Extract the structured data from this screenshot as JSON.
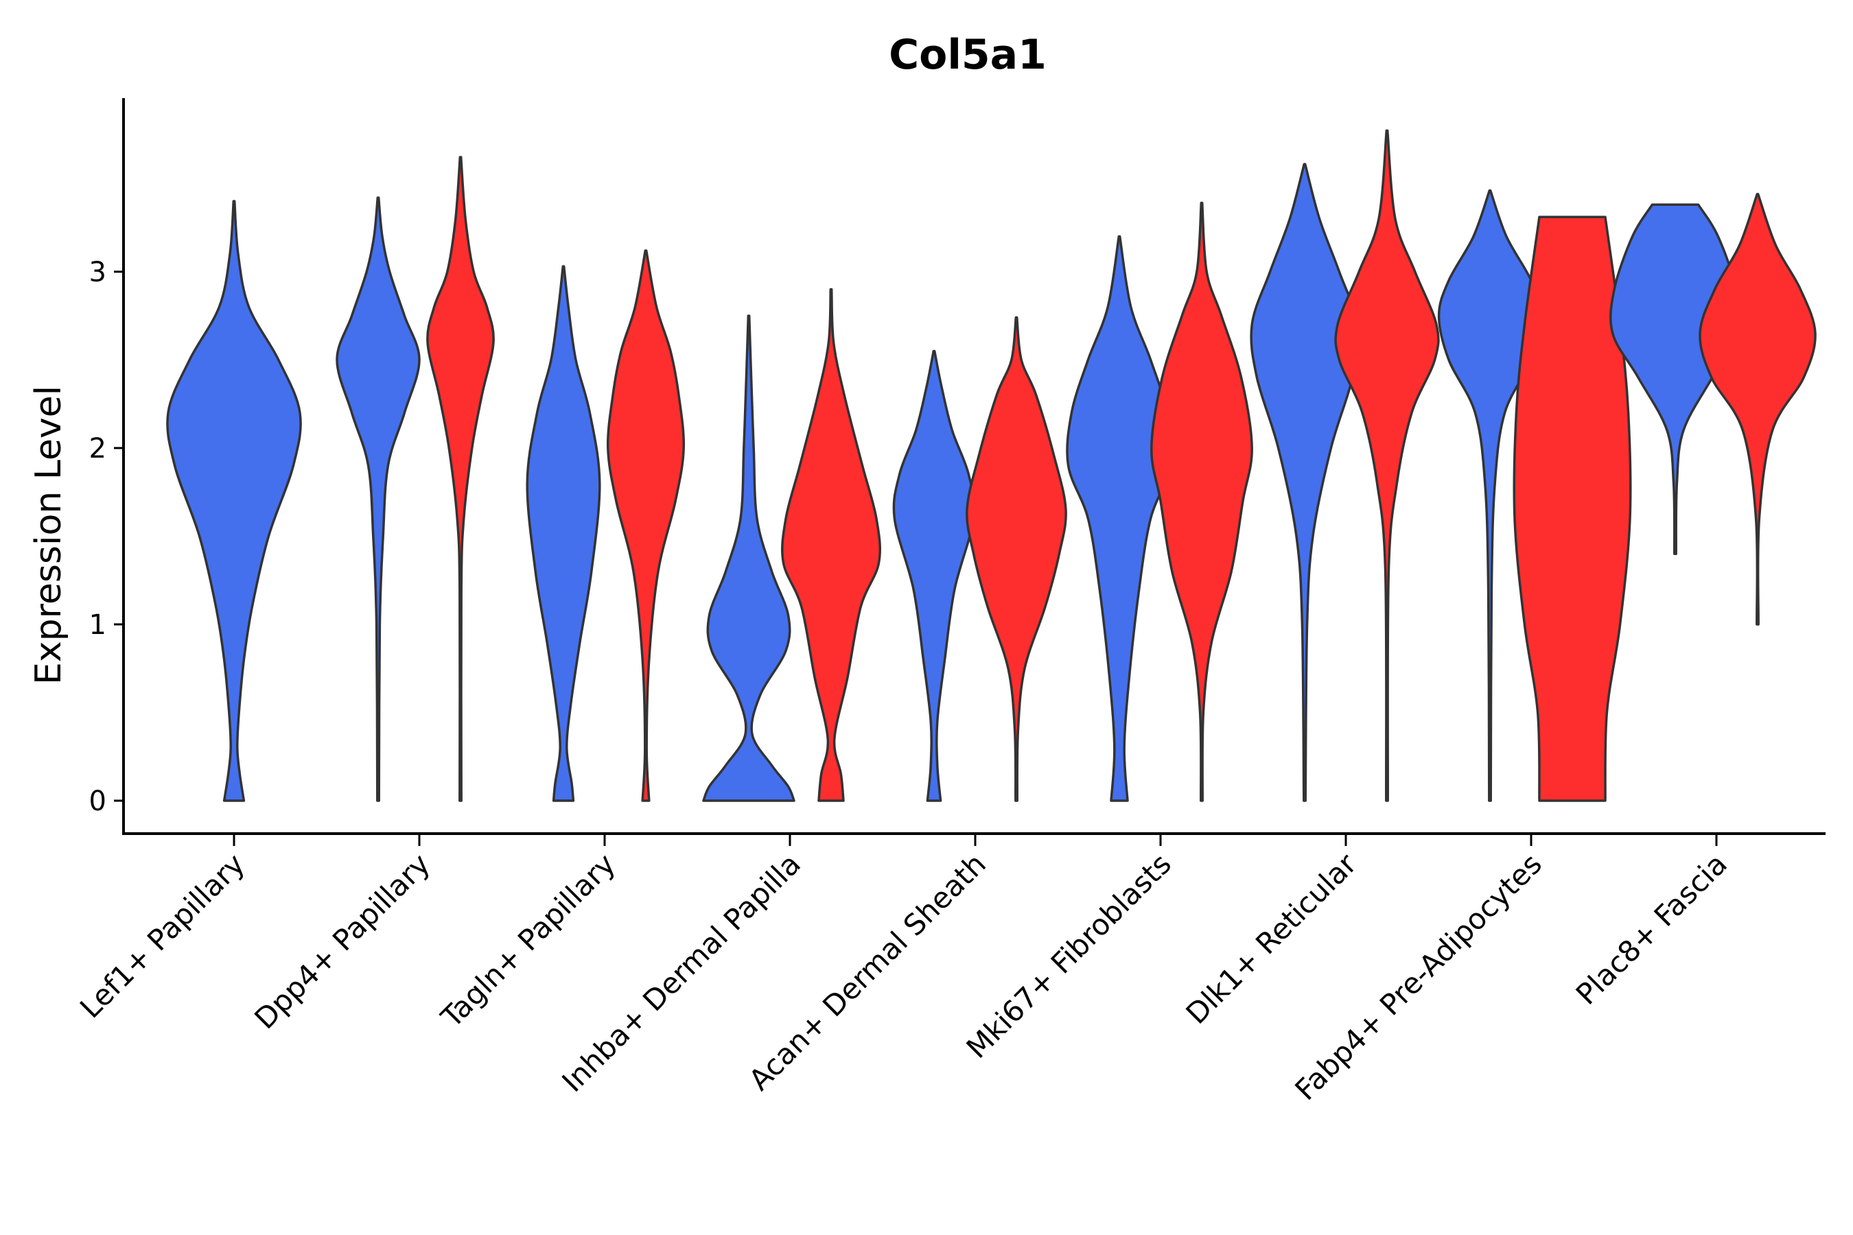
{
  "chart_data": {
    "type": "violin",
    "title": "Col5a1",
    "xlabel": "",
    "ylabel": "Expression Level",
    "ylim": [
      -0.2,
      4.0
    ],
    "yticks": [
      0,
      1,
      2,
      3
    ],
    "colors": {
      "group_a": "#4470ED",
      "group_b": "#FF2E2E",
      "outline": "#333333"
    },
    "categories": [
      "Lef1+ Papillary",
      "Dpp4+ Papillary",
      "Tagln+ Papillary",
      "Inhba+ Dermal Papilla",
      "Acan+ Dermal Sheath",
      "Mki67+ Fibroblasts",
      "Dlk1+ Reticular",
      "Fabp4+ Pre-Adipocytes",
      "Plac8+ Fascia"
    ],
    "violins": [
      {
        "category": "Lef1+ Papillary",
        "group": "a",
        "min": 0,
        "max": 3.4,
        "profile": [
          [
            0,
            0.12
          ],
          [
            0.15,
            0.07
          ],
          [
            0.3,
            0.04
          ],
          [
            0.5,
            0.06
          ],
          [
            0.8,
            0.12
          ],
          [
            1.1,
            0.22
          ],
          [
            1.5,
            0.42
          ],
          [
            1.9,
            0.72
          ],
          [
            2.2,
            0.8
          ],
          [
            2.5,
            0.54
          ],
          [
            2.8,
            0.18
          ],
          [
            3.1,
            0.05
          ],
          [
            3.4,
            0
          ]
        ]
      },
      {
        "category": "Dpp4+ Papillary",
        "group": "a",
        "min": 0,
        "max": 3.42,
        "profile": [
          [
            0,
            0.01
          ],
          [
            1.0,
            0.02
          ],
          [
            1.5,
            0.06
          ],
          [
            1.9,
            0.12
          ],
          [
            2.2,
            0.32
          ],
          [
            2.5,
            0.5
          ],
          [
            2.75,
            0.32
          ],
          [
            3.0,
            0.14
          ],
          [
            3.2,
            0.05
          ],
          [
            3.42,
            0
          ]
        ]
      },
      {
        "category": "Dpp4+ Papillary",
        "group": "b",
        "min": 0,
        "max": 3.65,
        "profile": [
          [
            0,
            0.01
          ],
          [
            1.2,
            0.01
          ],
          [
            1.6,
            0.04
          ],
          [
            2.0,
            0.14
          ],
          [
            2.3,
            0.26
          ],
          [
            2.6,
            0.4
          ],
          [
            2.8,
            0.32
          ],
          [
            3.0,
            0.16
          ],
          [
            3.3,
            0.06
          ],
          [
            3.65,
            0
          ]
        ]
      },
      {
        "category": "Tagln+ Papillary",
        "group": "a",
        "min": 0,
        "max": 3.03,
        "profile": [
          [
            0,
            0.12
          ],
          [
            0.1,
            0.1
          ],
          [
            0.3,
            0.04
          ],
          [
            0.55,
            0.09
          ],
          [
            0.9,
            0.2
          ],
          [
            1.3,
            0.34
          ],
          [
            1.8,
            0.44
          ],
          [
            2.2,
            0.32
          ],
          [
            2.5,
            0.15
          ],
          [
            2.8,
            0.06
          ],
          [
            3.03,
            0
          ]
        ]
      },
      {
        "category": "Tagln+ Papillary",
        "group": "b",
        "min": 0,
        "max": 3.12,
        "profile": [
          [
            0,
            0.04
          ],
          [
            0.3,
            0.01
          ],
          [
            0.8,
            0.04
          ],
          [
            1.3,
            0.15
          ],
          [
            1.7,
            0.36
          ],
          [
            2.0,
            0.46
          ],
          [
            2.3,
            0.4
          ],
          [
            2.55,
            0.3
          ],
          [
            2.8,
            0.13
          ],
          [
            3.12,
            0
          ]
        ]
      },
      {
        "category": "Inhba+ Dermal Papilla",
        "group": "a",
        "min": 0,
        "max": 2.75,
        "profile": [
          [
            0,
            0.55
          ],
          [
            0.08,
            0.48
          ],
          [
            0.2,
            0.28
          ],
          [
            0.38,
            0.04
          ],
          [
            0.6,
            0.14
          ],
          [
            0.85,
            0.45
          ],
          [
            1.05,
            0.48
          ],
          [
            1.3,
            0.28
          ],
          [
            1.6,
            0.1
          ],
          [
            2.0,
            0.06
          ],
          [
            2.4,
            0.03
          ],
          [
            2.75,
            0
          ]
        ]
      },
      {
        "category": "Inhba+ Dermal Papilla",
        "group": "b",
        "min": 0,
        "max": 2.9,
        "profile": [
          [
            0,
            0.15
          ],
          [
            0.15,
            0.12
          ],
          [
            0.35,
            0.04
          ],
          [
            0.7,
            0.2
          ],
          [
            1.1,
            0.36
          ],
          [
            1.35,
            0.58
          ],
          [
            1.6,
            0.55
          ],
          [
            1.9,
            0.38
          ],
          [
            2.3,
            0.16
          ],
          [
            2.6,
            0.03
          ],
          [
            2.9,
            0
          ]
        ]
      },
      {
        "category": "Acan+ Dermal Sheath",
        "group": "a",
        "min": 0,
        "max": 2.55,
        "profile": [
          [
            0,
            0.08
          ],
          [
            0.2,
            0.04
          ],
          [
            0.45,
            0.04
          ],
          [
            0.8,
            0.13
          ],
          [
            1.2,
            0.25
          ],
          [
            1.6,
            0.48
          ],
          [
            1.85,
            0.42
          ],
          [
            2.1,
            0.22
          ],
          [
            2.35,
            0.09
          ],
          [
            2.55,
            0
          ]
        ]
      },
      {
        "category": "Acan+ Dermal Sheath",
        "group": "b",
        "min": 0,
        "max": 2.74,
        "profile": [
          [
            0,
            0.01
          ],
          [
            0.4,
            0.02
          ],
          [
            0.75,
            0.1
          ],
          [
            1.1,
            0.35
          ],
          [
            1.4,
            0.52
          ],
          [
            1.65,
            0.6
          ],
          [
            1.95,
            0.46
          ],
          [
            2.3,
            0.24
          ],
          [
            2.5,
            0.06
          ],
          [
            2.74,
            0
          ]
        ]
      },
      {
        "category": "Mki67+ Fibroblasts",
        "group": "a",
        "min": 0,
        "max": 3.2,
        "profile": [
          [
            0,
            0.1
          ],
          [
            0.3,
            0.06
          ],
          [
            0.7,
            0.12
          ],
          [
            1.2,
            0.24
          ],
          [
            1.6,
            0.38
          ],
          [
            1.9,
            0.62
          ],
          [
            2.2,
            0.58
          ],
          [
            2.5,
            0.38
          ],
          [
            2.8,
            0.14
          ],
          [
            3.2,
            0
          ]
        ]
      },
      {
        "category": "Mki67+ Fibroblasts",
        "group": "b",
        "min": 0,
        "max": 3.39,
        "profile": [
          [
            0,
            0.01
          ],
          [
            0.5,
            0.02
          ],
          [
            0.9,
            0.12
          ],
          [
            1.3,
            0.36
          ],
          [
            1.7,
            0.5
          ],
          [
            2.0,
            0.61
          ],
          [
            2.4,
            0.48
          ],
          [
            2.75,
            0.24
          ],
          [
            3.0,
            0.06
          ],
          [
            3.39,
            0
          ]
        ]
      },
      {
        "category": "Dlk1+ Reticular",
        "group": "a",
        "min": 0,
        "max": 3.61,
        "profile": [
          [
            0,
            0.01
          ],
          [
            1.0,
            0.03
          ],
          [
            1.5,
            0.1
          ],
          [
            2.0,
            0.32
          ],
          [
            2.4,
            0.58
          ],
          [
            2.7,
            0.64
          ],
          [
            3.0,
            0.42
          ],
          [
            3.3,
            0.18
          ],
          [
            3.61,
            0
          ]
        ]
      },
      {
        "category": "Dlk1+ Reticular",
        "group": "b",
        "min": 0,
        "max": 3.8,
        "profile": [
          [
            0,
            0.01
          ],
          [
            1.3,
            0.02
          ],
          [
            1.8,
            0.12
          ],
          [
            2.2,
            0.3
          ],
          [
            2.5,
            0.58
          ],
          [
            2.7,
            0.6
          ],
          [
            3.0,
            0.34
          ],
          [
            3.3,
            0.1
          ],
          [
            3.8,
            0
          ]
        ]
      },
      {
        "category": "Fabp4+ Pre-Adipocytes",
        "group": "a",
        "min": 0,
        "max": 3.46,
        "profile": [
          [
            0,
            0.01
          ],
          [
            1.2,
            0.02
          ],
          [
            1.8,
            0.06
          ],
          [
            2.2,
            0.18
          ],
          [
            2.5,
            0.5
          ],
          [
            2.75,
            0.62
          ],
          [
            2.95,
            0.5
          ],
          [
            3.2,
            0.2
          ],
          [
            3.46,
            0
          ]
        ]
      },
      {
        "category": "Fabp4+ Pre-Adipocytes",
        "group": "b",
        "min": 0,
        "max": 3.31,
        "flat_top": true,
        "profile": [
          [
            0,
            0.4
          ],
          [
            0.5,
            0.42
          ],
          [
            1.0,
            0.58
          ],
          [
            1.6,
            0.7
          ],
          [
            2.2,
            0.68
          ],
          [
            2.7,
            0.58
          ],
          [
            3.31,
            0.4
          ]
        ]
      },
      {
        "category": "Plac8+ Fascia",
        "group": "a",
        "min": 1.4,
        "max": 3.38,
        "flat_top": true,
        "profile": [
          [
            1.4,
            0.01
          ],
          [
            1.8,
            0.02
          ],
          [
            2.1,
            0.1
          ],
          [
            2.4,
            0.45
          ],
          [
            2.65,
            0.76
          ],
          [
            2.9,
            0.74
          ],
          [
            3.2,
            0.52
          ],
          [
            3.38,
            0.28
          ]
        ]
      },
      {
        "category": "Plac8+ Fascia",
        "group": "b",
        "min": 1.0,
        "max": 3.44,
        "profile": [
          [
            1.0,
            0.01
          ],
          [
            1.6,
            0.02
          ],
          [
            2.1,
            0.18
          ],
          [
            2.4,
            0.56
          ],
          [
            2.65,
            0.7
          ],
          [
            2.9,
            0.52
          ],
          [
            3.15,
            0.22
          ],
          [
            3.44,
            0
          ]
        ]
      }
    ]
  }
}
